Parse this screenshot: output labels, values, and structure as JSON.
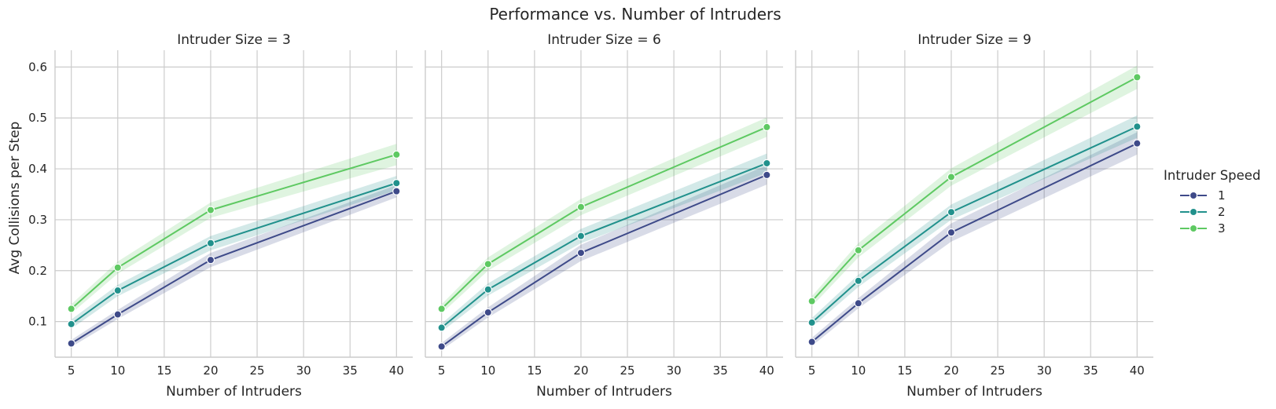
{
  "chart_data": {
    "type": "line",
    "title": "Performance vs. Number of Intruders",
    "ylabel": "Avg Collisions per Step",
    "xlabel": "Number of Intruders",
    "x": [
      5,
      10,
      20,
      40
    ],
    "xticks": [
      "5",
      "10",
      "15",
      "20",
      "25",
      "30",
      "35",
      "40"
    ],
    "yticks": [
      "0.1",
      "0.2",
      "0.3",
      "0.4",
      "0.5",
      "0.6"
    ],
    "xlim": [
      3.25,
      41.75
    ],
    "ylim": [
      0.03,
      0.633
    ],
    "grid": true,
    "legend": {
      "title": "Intruder Speed",
      "position": "right",
      "entries": [
        {
          "label": "1",
          "color": "#3e4a89"
        },
        {
          "label": "2",
          "color": "#21918c"
        },
        {
          "label": "3",
          "color": "#5ec962"
        }
      ]
    },
    "panels": [
      {
        "title": "Intruder Size = 3",
        "series": [
          {
            "name": "1",
            "color": "#3e4a89",
            "values": [
              0.057,
              0.114,
              0.221,
              0.356
            ],
            "ci_low": [
              0.05,
              0.105,
              0.207,
              0.344
            ],
            "ci_high": [
              0.064,
              0.123,
              0.235,
              0.368
            ]
          },
          {
            "name": "2",
            "color": "#21918c",
            "values": [
              0.095,
              0.161,
              0.254,
              0.372
            ],
            "ci_low": [
              0.086,
              0.15,
              0.24,
              0.358
            ],
            "ci_high": [
              0.104,
              0.172,
              0.268,
              0.386
            ]
          },
          {
            "name": "3",
            "color": "#5ec962",
            "values": [
              0.125,
              0.206,
              0.319,
              0.428
            ],
            "ci_low": [
              0.116,
              0.194,
              0.304,
              0.407
            ],
            "ci_high": [
              0.134,
              0.218,
              0.334,
              0.449
            ]
          }
        ]
      },
      {
        "title": "Intruder Size = 6",
        "series": [
          {
            "name": "1",
            "color": "#3e4a89",
            "values": [
              0.051,
              0.118,
              0.235,
              0.388
            ],
            "ci_low": [
              0.044,
              0.108,
              0.219,
              0.369
            ],
            "ci_high": [
              0.058,
              0.128,
              0.251,
              0.407
            ]
          },
          {
            "name": "2",
            "color": "#21918c",
            "values": [
              0.088,
              0.163,
              0.268,
              0.411
            ],
            "ci_low": [
              0.08,
              0.151,
              0.254,
              0.392
            ],
            "ci_high": [
              0.096,
              0.175,
              0.282,
              0.43
            ]
          },
          {
            "name": "3",
            "color": "#5ec962",
            "values": [
              0.125,
              0.213,
              0.325,
              0.482
            ],
            "ci_low": [
              0.116,
              0.2,
              0.309,
              0.463
            ],
            "ci_high": [
              0.134,
              0.226,
              0.341,
              0.501
            ]
          }
        ]
      },
      {
        "title": "Intruder Size = 9",
        "series": [
          {
            "name": "1",
            "color": "#3e4a89",
            "values": [
              0.06,
              0.136,
              0.275,
              0.45
            ],
            "ci_low": [
              0.052,
              0.126,
              0.257,
              0.428
            ],
            "ci_high": [
              0.068,
              0.146,
              0.293,
              0.472
            ]
          },
          {
            "name": "2",
            "color": "#21918c",
            "values": [
              0.098,
              0.18,
              0.315,
              0.483
            ],
            "ci_low": [
              0.089,
              0.168,
              0.3,
              0.461
            ],
            "ci_high": [
              0.107,
              0.192,
              0.33,
              0.505
            ]
          },
          {
            "name": "3",
            "color": "#5ec962",
            "values": [
              0.14,
              0.24,
              0.384,
              0.58
            ],
            "ci_low": [
              0.13,
              0.226,
              0.367,
              0.557
            ],
            "ci_high": [
              0.15,
              0.254,
              0.401,
              0.603
            ]
          }
        ]
      }
    ]
  }
}
